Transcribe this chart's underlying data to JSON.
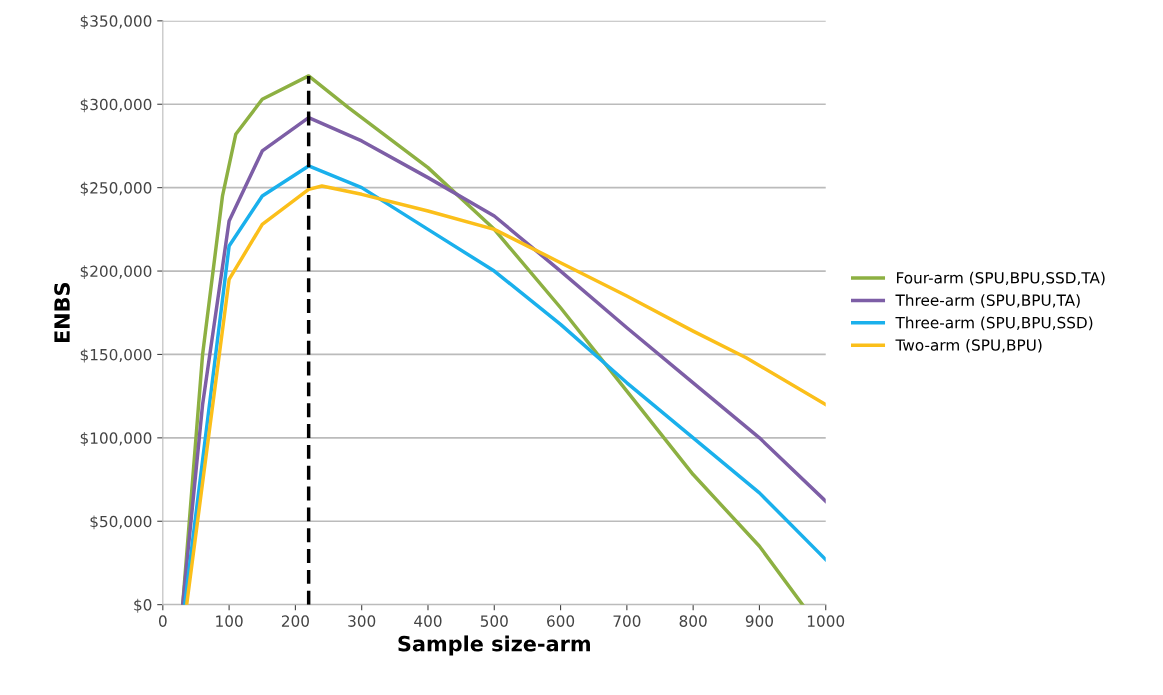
{
  "chart_data": {
    "type": "line",
    "xlabel": "Sample size-arm",
    "ylabel": "ENBS",
    "xlim": [
      0,
      1000
    ],
    "xticks": [
      0,
      100,
      200,
      300,
      400,
      500,
      600,
      700,
      800,
      900,
      1000
    ],
    "ylim": [
      0,
      350000
    ],
    "yticks": [
      {
        "value": 0,
        "label": "$0"
      },
      {
        "value": 50000,
        "label": "$50,000"
      },
      {
        "value": 100000,
        "label": "$100,000"
      },
      {
        "value": 150000,
        "label": "$150,000"
      },
      {
        "value": 200000,
        "label": "$200,000"
      },
      {
        "value": 250000,
        "label": "$250,000"
      },
      {
        "value": 300000,
        "label": "$300,000"
      },
      {
        "value": 350000,
        "label": "$350,000"
      }
    ],
    "grid": "y",
    "legend": "right",
    "marker": "none",
    "series": [
      {
        "name": "Four-arm (SPU,BPU,SSD,TA)",
        "color": "#8db042",
        "x": [
          30,
          60,
          90,
          110,
          150,
          220,
          280,
          300,
          400,
          500,
          600,
          700,
          800,
          900,
          965
        ],
        "values": [
          0,
          150000,
          245000,
          282000,
          303000,
          317000,
          298000,
          292000,
          262000,
          225000,
          178000,
          128000,
          78000,
          35000,
          0
        ]
      },
      {
        "name": "Three-arm (SPU,BPU,TA)",
        "color": "#7d5ea6",
        "x": [
          30,
          60,
          100,
          150,
          220,
          300,
          400,
          500,
          600,
          700,
          800,
          900,
          1000
        ],
        "values": [
          0,
          120000,
          230000,
          272000,
          292000,
          278000,
          256000,
          233000,
          200000,
          166000,
          133000,
          100000,
          62000
        ]
      },
      {
        "name": "Three-arm (SPU,BPU,SSD)",
        "color": "#1ab0ec",
        "x": [
          33,
          100,
          150,
          220,
          300,
          400,
          500,
          600,
          700,
          800,
          900,
          1000
        ],
        "values": [
          0,
          215000,
          245000,
          263000,
          250000,
          225000,
          200000,
          168000,
          133000,
          100000,
          67000,
          27000
        ]
      },
      {
        "name": "Two-arm (SPU,BPU)",
        "color": "#fbbf1a",
        "x": [
          36,
          100,
          150,
          220,
          240,
          300,
          400,
          500,
          600,
          700,
          800,
          880,
          1000
        ],
        "values": [
          0,
          195000,
          228000,
          249000,
          251000,
          246000,
          236000,
          225000,
          205000,
          185000,
          164000,
          148000,
          120000
        ]
      },
      {
        "color": "#000000",
        "line_style": "dashed",
        "x": [
          220,
          220
        ],
        "values": [
          0,
          317000
        ]
      }
    ]
  }
}
